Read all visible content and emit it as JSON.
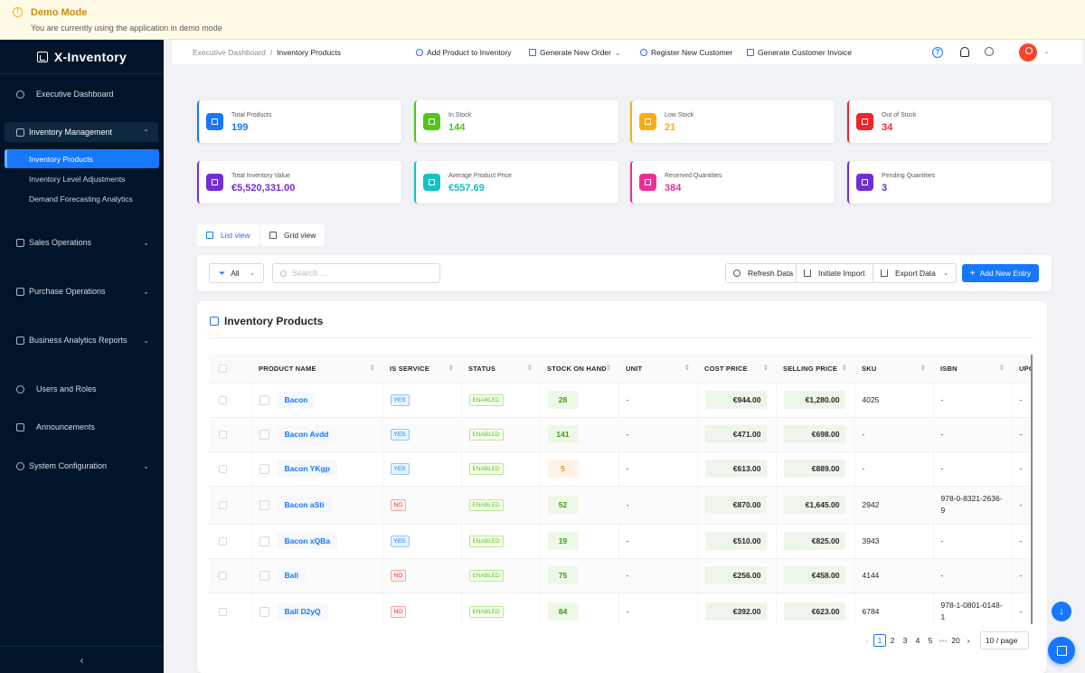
{
  "banner": {
    "title": "Demo Mode",
    "subtitle": "You are currently using the application in demo mode"
  },
  "app": {
    "name": "X-Inventory"
  },
  "sidebar": {
    "dashboard": "Executive Dashboard",
    "inventory_group": "Inventory Management",
    "inventory_items": [
      "Inventory Products",
      "Inventory Level Adjustments",
      "Demand Forecasting Analytics"
    ],
    "sales": "Sales Operations",
    "purchase": "Purchase Operations",
    "analytics": "Business Analytics Reports",
    "users": "Users and Roles",
    "announcements": "Announcements",
    "config": "System Configuration"
  },
  "topbar": {
    "breadcrumb_root": "Executive Dashboard",
    "breadcrumb_current": "Inventory Products",
    "add_product": "Add Product to Inventory",
    "generate_order": "Generate New Order",
    "register_customer": "Register New Customer",
    "generate_invoice": "Generate Customer Invoice"
  },
  "stats": [
    {
      "label": "Total Products",
      "value": "199",
      "color": "#1677ff"
    },
    {
      "label": "In Stock",
      "value": "144",
      "color": "#52c41a"
    },
    {
      "label": "Low Stock",
      "value": "21",
      "color": "#faad14"
    },
    {
      "label": "Out of Stock",
      "value": "34",
      "color": "#f5222d"
    },
    {
      "label": "Total Inventory Value",
      "value": "€5,520,331.00",
      "color": "#722ed1"
    },
    {
      "label": "Average Product Price",
      "value": "€557.69",
      "color": "#13c2c2"
    },
    {
      "label": "Reserved Quantities",
      "value": "384",
      "color": "#eb2f96"
    },
    {
      "label": "Pending Quantities",
      "value": "3",
      "color": "#722ed1"
    }
  ],
  "views": {
    "list": "List view",
    "grid": "Grid view"
  },
  "toolbar": {
    "filter": "All",
    "search_placeholder": "Search ...",
    "refresh": "Refresh Data",
    "import": "Initiate Import",
    "export": "Export Data",
    "add": "Add New Entry"
  },
  "table": {
    "title": "Inventory Products",
    "columns": [
      "PRODUCT NAME",
      "IS SERVICE",
      "STATUS",
      "STOCK ON HAND",
      "UNIT",
      "COST PRICE",
      "SELLING PRICE",
      "SKU",
      "ISBN",
      "UPC"
    ],
    "rows": [
      {
        "name": "Bacon",
        "service": "YES",
        "status": "ENABLED",
        "stock": "28",
        "unit": "-",
        "cost": "€944.00",
        "sell": "€1,280.00",
        "sku": "4025",
        "isbn": "-",
        "upc": "-"
      },
      {
        "name": "Bacon Avdd",
        "service": "YES",
        "status": "ENABLED",
        "stock": "141",
        "unit": "-",
        "cost": "€471.00",
        "sell": "€698.00",
        "sku": "-",
        "isbn": "-",
        "upc": "-"
      },
      {
        "name": "Bacon YKgp",
        "service": "YES",
        "status": "ENABLED",
        "stock": "5",
        "unit": "-",
        "cost": "€613.00",
        "sell": "€889.00",
        "sku": "-",
        "isbn": "-",
        "upc": "-"
      },
      {
        "name": "Bacon aSti",
        "service": "NO",
        "status": "ENABLED",
        "stock": "52",
        "unit": "-",
        "cost": "€870.00",
        "sell": "€1,645.00",
        "sku": "2942",
        "isbn": "978-0-8321-2636-9",
        "upc": "-"
      },
      {
        "name": "Bacon xQBa",
        "service": "YES",
        "status": "ENABLED",
        "stock": "19",
        "unit": "-",
        "cost": "€510.00",
        "sell": "€825.00",
        "sku": "3943",
        "isbn": "-",
        "upc": "-"
      },
      {
        "name": "Ball",
        "service": "NO",
        "status": "ENABLED",
        "stock": "75",
        "unit": "-",
        "cost": "€256.00",
        "sell": "€458.00",
        "sku": "4144",
        "isbn": "-",
        "upc": "-"
      },
      {
        "name": "Ball D2yQ",
        "service": "NO",
        "status": "ENABLED",
        "stock": "84",
        "unit": "-",
        "cost": "€392.00",
        "sell": "€623.00",
        "sku": "6784",
        "isbn": "978-1-0801-0148-1",
        "upc": "-"
      }
    ]
  },
  "pagination": {
    "pages": [
      "1",
      "2",
      "3",
      "4",
      "5",
      "•••",
      "20"
    ],
    "current": "1",
    "page_size": "10 / page"
  }
}
